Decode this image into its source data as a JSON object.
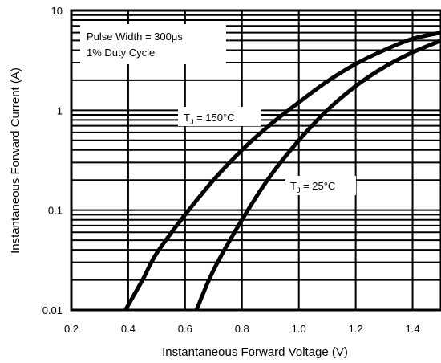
{
  "chart_data": {
    "type": "line",
    "xlabel": "Instantaneous Forward Voltage (V)",
    "ylabel": "Instantaneous Forward Current (A)",
    "xlim": [
      0.2,
      1.5
    ],
    "ylim": [
      0.01,
      10
    ],
    "yscale": "log",
    "grid": true,
    "x_ticks": [
      "0.2",
      "0.4",
      "0.6",
      "0.8",
      "1.0",
      "1.2",
      "1.4"
    ],
    "y_ticks": [
      "0.01",
      "0.1",
      "1",
      "10"
    ],
    "annotation": {
      "line1": "Pulse Width = 300μs",
      "line2": "1% Duty Cycle"
    },
    "series": [
      {
        "name": "Tⱼ = 150°C",
        "label_main": "T",
        "label_sub": "J",
        "label_rest": " = 150°C",
        "points": [
          [
            0.39,
            0.01
          ],
          [
            0.45,
            0.02
          ],
          [
            0.5,
            0.037
          ],
          [
            0.6,
            0.09
          ],
          [
            0.7,
            0.2
          ],
          [
            0.8,
            0.4
          ],
          [
            0.9,
            0.72
          ],
          [
            1.0,
            1.2
          ],
          [
            1.1,
            1.95
          ],
          [
            1.2,
            2.9
          ],
          [
            1.3,
            4.0
          ],
          [
            1.4,
            5.2
          ],
          [
            1.5,
            6.0
          ]
        ]
      },
      {
        "name": "Tⱼ = 25°C",
        "label_main": "T",
        "label_sub": "J",
        "label_rest": " = 25°C",
        "points": [
          [
            0.64,
            0.01
          ],
          [
            0.7,
            0.025
          ],
          [
            0.8,
            0.08
          ],
          [
            0.9,
            0.22
          ],
          [
            1.0,
            0.5
          ],
          [
            1.1,
            1.0
          ],
          [
            1.2,
            1.75
          ],
          [
            1.3,
            2.7
          ],
          [
            1.4,
            3.8
          ],
          [
            1.5,
            5.0
          ]
        ]
      }
    ]
  }
}
